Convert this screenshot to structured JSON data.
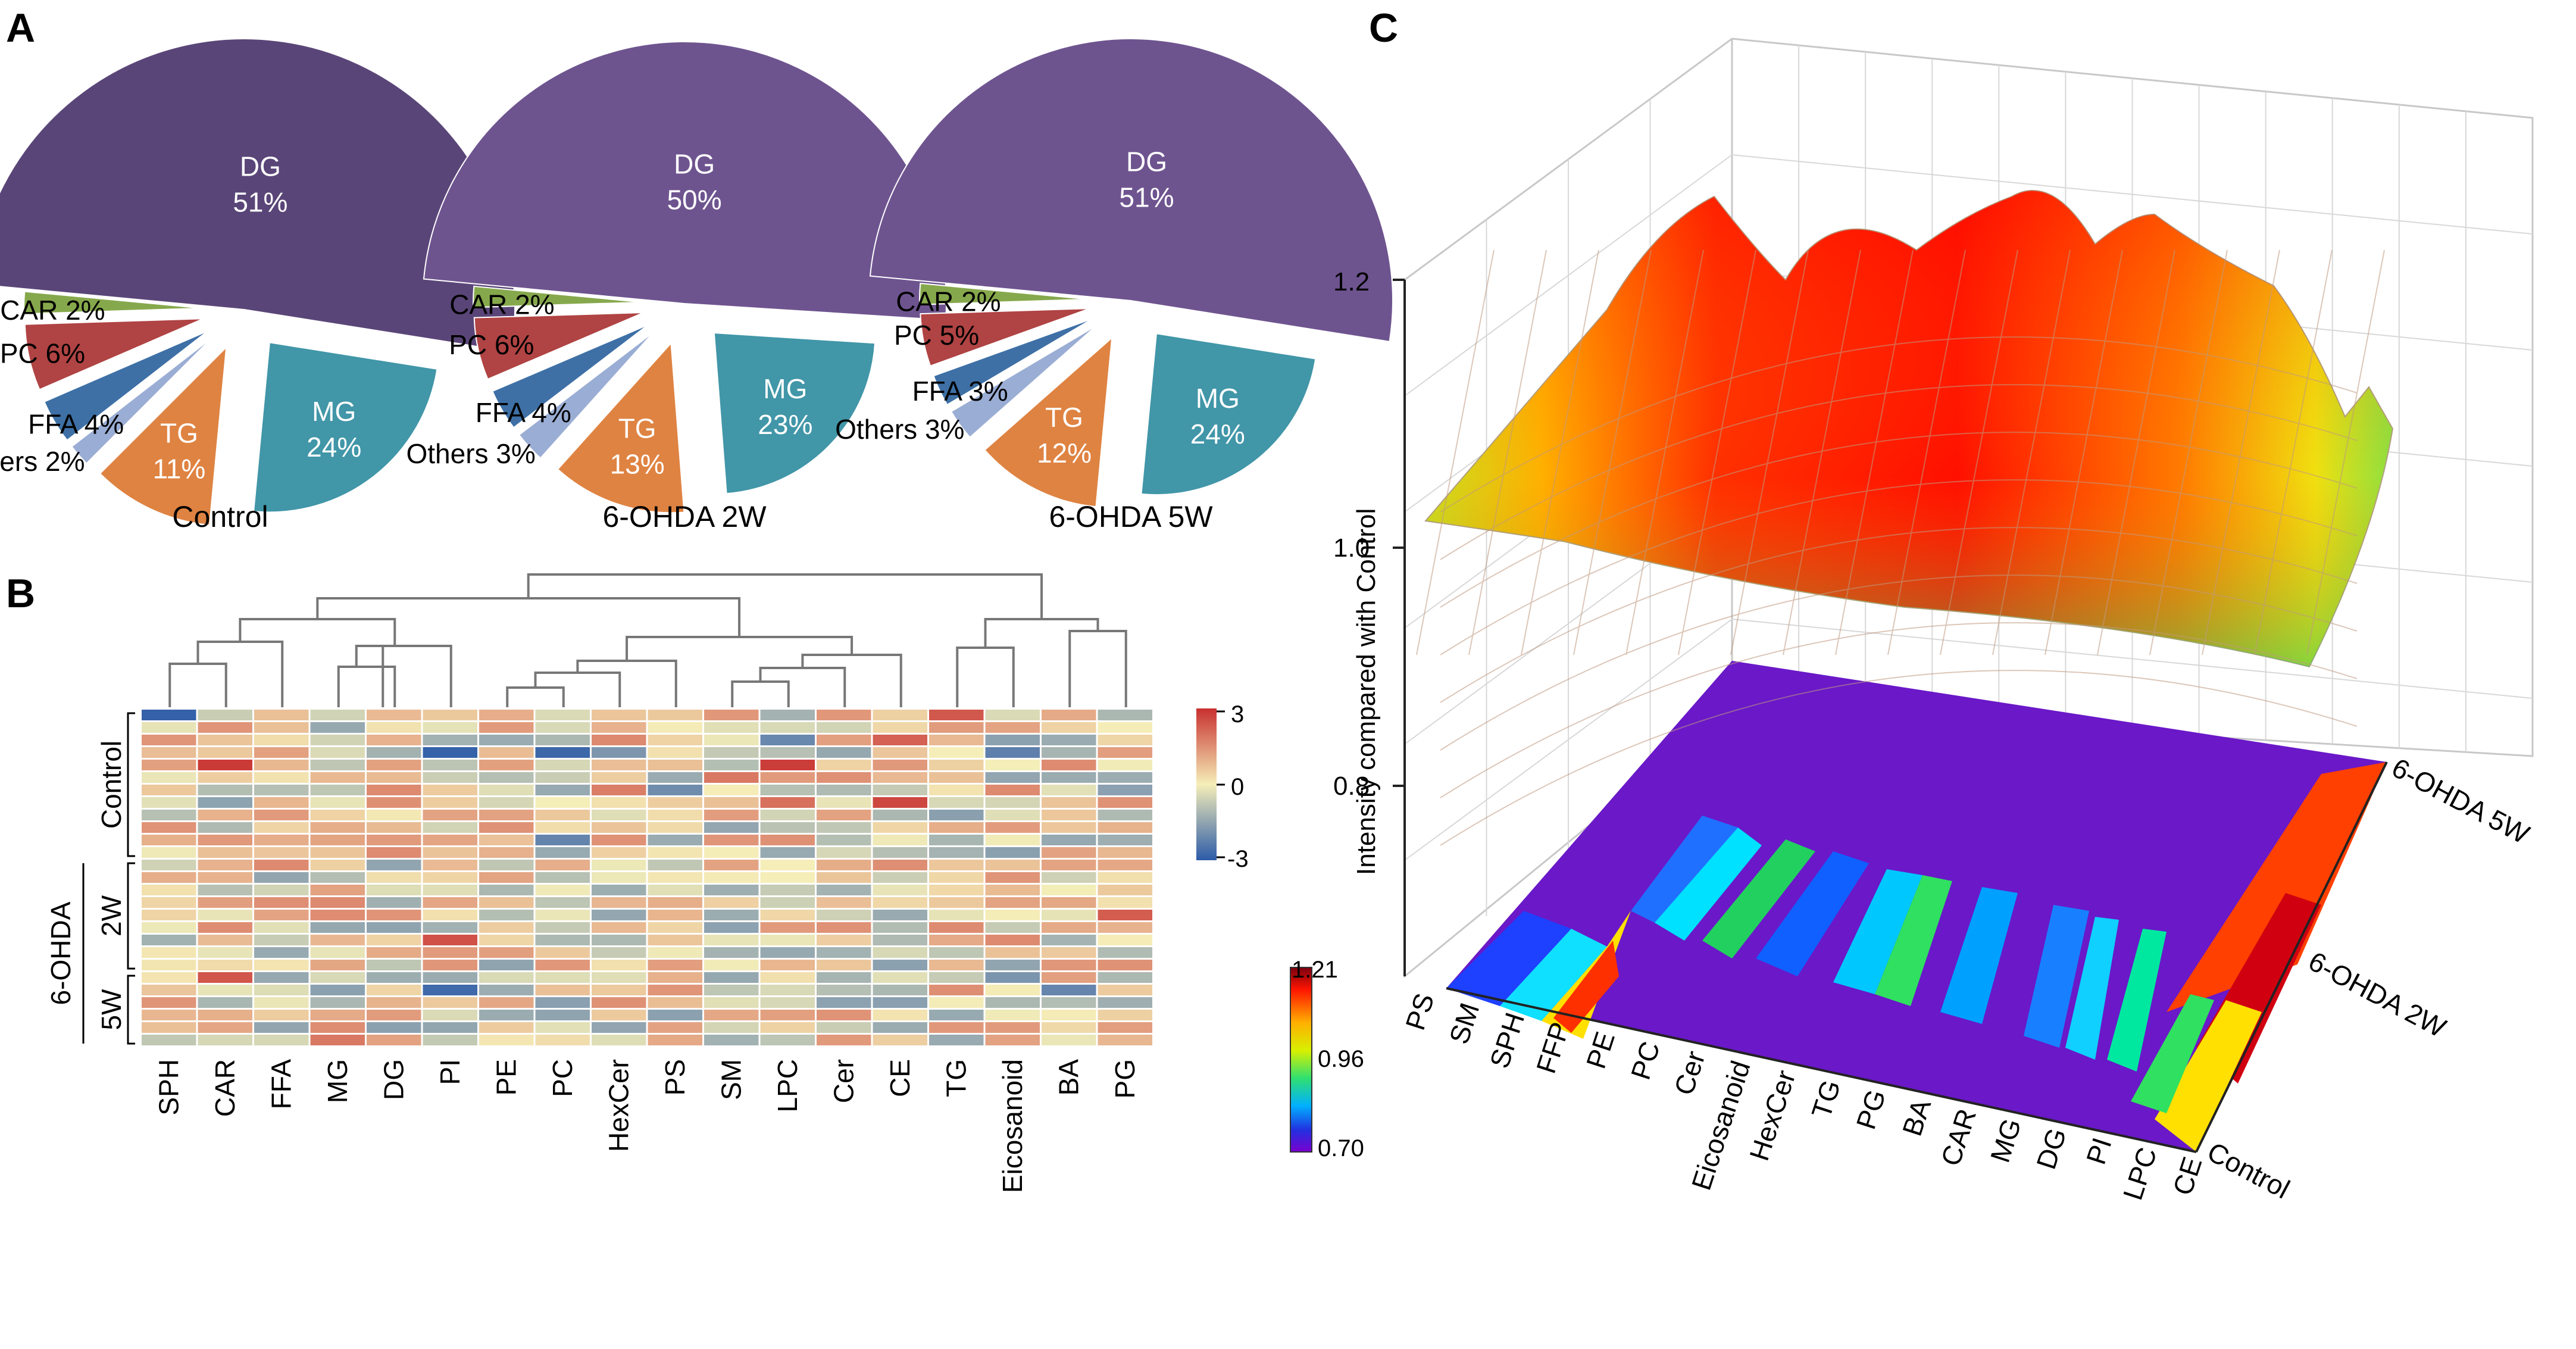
{
  "panels": {
    "a": "A",
    "b": "B",
    "c": "C"
  },
  "chart_data": [
    {
      "type": "pie",
      "panel": "A",
      "title": "Control",
      "slices": [
        {
          "name": "DG",
          "value": 51,
          "label": "51%",
          "color": "#5a4578"
        },
        {
          "name": "MG",
          "value": 24,
          "label": "24%",
          "color": "#4196a8"
        },
        {
          "name": "TG",
          "value": 11,
          "label": "11%",
          "color": "#df8342"
        },
        {
          "name": "Others",
          "value": 2,
          "label": "2%",
          "color": "#9aadd4"
        },
        {
          "name": "FFA",
          "value": 4,
          "label": "4%",
          "color": "#3e70a6"
        },
        {
          "name": "PC",
          "value": 6,
          "label": "6%",
          "color": "#b04343"
        },
        {
          "name": "CAR",
          "value": 2,
          "label": "2%",
          "color": "#86a84c"
        }
      ]
    },
    {
      "type": "pie",
      "panel": "A",
      "title": "6-OHDA 2W",
      "slices": [
        {
          "name": "DG",
          "value": 50,
          "label": "50%",
          "color": "#6e548f"
        },
        {
          "name": "MG",
          "value": 23,
          "label": "23%",
          "color": "#4196a8"
        },
        {
          "name": "TG",
          "value": 13,
          "label": "13%",
          "color": "#df8342"
        },
        {
          "name": "Others",
          "value": 3,
          "label": "3%",
          "color": "#9aadd4"
        },
        {
          "name": "FFA",
          "value": 4,
          "label": "4%",
          "color": "#3e70a6"
        },
        {
          "name": "PC",
          "value": 6,
          "label": "6%",
          "color": "#b04343"
        },
        {
          "name": "CAR",
          "value": 2,
          "label": "2%",
          "color": "#86a84c"
        }
      ]
    },
    {
      "type": "pie",
      "panel": "A",
      "title": "6-OHDA 5W",
      "slices": [
        {
          "name": "DG",
          "value": 51,
          "label": "51%",
          "color": "#6e548f"
        },
        {
          "name": "MG",
          "value": 24,
          "label": "24%",
          "color": "#4196a8"
        },
        {
          "name": "TG",
          "value": 12,
          "label": "12%",
          "color": "#df8342"
        },
        {
          "name": "Others",
          "value": 3,
          "label": "3%",
          "color": "#9aadd4"
        },
        {
          "name": "FFA",
          "value": 3,
          "label": "3%",
          "color": "#3e70a6"
        },
        {
          "name": "PC",
          "value": 5,
          "label": "5%",
          "color": "#b04343"
        },
        {
          "name": "CAR",
          "value": 2,
          "label": "2%",
          "color": "#86a84c"
        }
      ]
    },
    {
      "type": "heatmap",
      "panel": "B",
      "columns": [
        "SPH",
        "CAR",
        "FFA",
        "MG",
        "DG",
        "PI",
        "PE",
        "PC",
        "HexCer",
        "PS",
        "SM",
        "LPC",
        "Cer",
        "CE",
        "TG",
        "Eicosanoid",
        "BA",
        "PG"
      ],
      "row_groups": [
        {
          "label": "Control",
          "rows": 12
        },
        {
          "label": "2W",
          "rows": 9
        },
        {
          "label": "5W",
          "rows": 6
        }
      ],
      "outer_group_label": "6-OHDA",
      "colorbar": {
        "ticks": [
          "3",
          "0",
          "-3"
        ],
        "min": -3,
        "max": 3,
        "colors": [
          "#2c5ba8",
          "#f5eeb8",
          "#c8302f"
        ]
      }
    },
    {
      "type": "surface3d",
      "panel": "C",
      "zlabel": "Intensity compared with Control",
      "z_ticks": [
        "1.2",
        "1.0",
        "0.8"
      ],
      "x_categories": [
        "PS",
        "SM",
        "SPH",
        "FFP",
        "PE",
        "PC",
        "Cer",
        "Eicosanoid",
        "HexCer",
        "TG",
        "PG",
        "BA",
        "CAR",
        "MG",
        "DG",
        "PI",
        "LPC",
        "CE"
      ],
      "y_categories": [
        "Control",
        "6-OHDA 2W",
        "6-OHDA 5W"
      ],
      "surface_profile": [
        1.0,
        1.0,
        1.0,
        1.02,
        1.06,
        1.1,
        1.14,
        1.17,
        1.19,
        1.21,
        1.2,
        1.19,
        1.17,
        1.15,
        1.12,
        1.1,
        1.06,
        1.02
      ],
      "colorbar": {
        "ticks": [
          "1.21",
          "0.96",
          "0.70"
        ],
        "min": 0.7,
        "max": 1.21
      }
    }
  ]
}
